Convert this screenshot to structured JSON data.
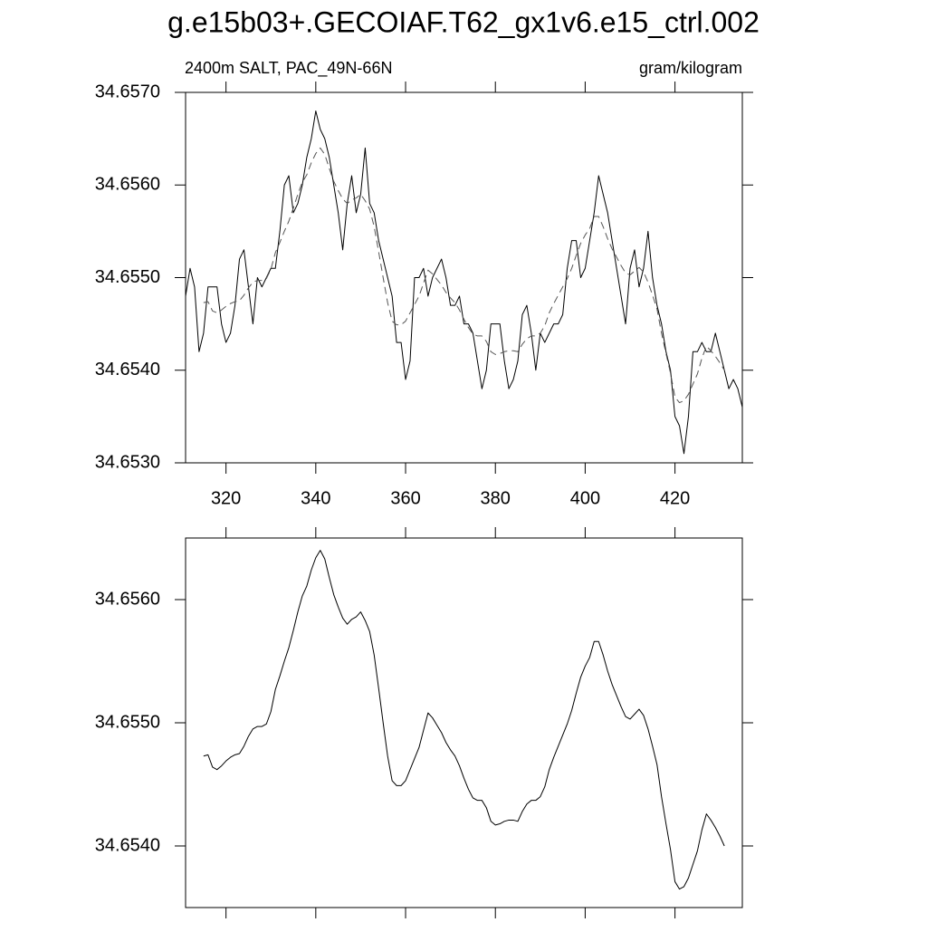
{
  "chart_data": [
    {
      "type": "line",
      "title": "g.e15b03+.GECOIAF.T62_gx1v6.e15_ctrl.002",
      "left_string": "2400m SALT, PAC_49N-66N",
      "right_string": "gram/kilogram",
      "xlim": [
        311,
        435
      ],
      "xticks": [
        320,
        340,
        360,
        380,
        400,
        420
      ],
      "x_tick_labels": true,
      "ylim": [
        34.653,
        34.657
      ],
      "yticks": [
        {
          "value": 34.653,
          "label": "34.6530"
        },
        {
          "value": 34.654,
          "label": "34.6540"
        },
        {
          "value": 34.655,
          "label": "34.6550"
        },
        {
          "value": 34.656,
          "label": "34.6560"
        },
        {
          "value": 34.657,
          "label": "34.6570"
        }
      ],
      "series": [
        {
          "color": "#000000",
          "dash": false,
          "x": [
            311,
            312,
            313,
            314,
            315,
            316,
            317,
            318,
            319,
            320,
            321,
            322,
            323,
            324,
            325,
            326,
            327,
            328,
            329,
            330,
            331,
            332,
            333,
            334,
            335,
            336,
            337,
            338,
            339,
            340,
            341,
            342,
            343,
            344,
            345,
            346,
            347,
            348,
            349,
            350,
            351,
            352,
            353,
            354,
            355,
            356,
            357,
            358,
            359,
            360,
            361,
            362,
            363,
            364,
            365,
            366,
            367,
            368,
            369,
            370,
            371,
            372,
            373,
            374,
            375,
            376,
            377,
            378,
            379,
            380,
            381,
            382,
            383,
            384,
            385,
            386,
            387,
            388,
            389,
            390,
            391,
            392,
            393,
            394,
            395,
            396,
            397,
            398,
            399,
            400,
            401,
            402,
            403,
            404,
            405,
            406,
            407,
            408,
            409,
            410,
            411,
            412,
            413,
            414,
            415,
            416,
            417,
            418,
            419,
            420,
            421,
            422,
            423,
            424,
            425,
            426,
            427,
            428,
            429,
            430,
            431,
            432,
            433,
            434,
            435
          ],
          "values": [
            34.6548,
            34.6551,
            34.6549,
            34.6542,
            34.6544,
            34.6549,
            34.6549,
            34.6549,
            34.6545,
            34.6543,
            34.6544,
            34.6547,
            34.6552,
            34.6553,
            34.6549,
            34.6545,
            34.655,
            34.6549,
            34.655,
            34.6551,
            34.6551,
            34.6555,
            34.656,
            34.6561,
            34.6557,
            34.6558,
            34.656,
            34.6563,
            34.6565,
            34.6568,
            34.6566,
            34.6565,
            34.6563,
            34.656,
            34.6557,
            34.6553,
            34.6558,
            34.6561,
            34.6557,
            34.6559,
            34.6564,
            34.6558,
            34.6557,
            34.6554,
            34.6552,
            34.655,
            34.6548,
            34.6543,
            34.6543,
            34.6539,
            34.6541,
            34.655,
            34.655,
            34.6551,
            34.6548,
            34.655,
            34.6551,
            34.6552,
            34.655,
            34.6547,
            34.6547,
            34.6548,
            34.6545,
            34.6545,
            34.6544,
            34.6541,
            34.6538,
            34.654,
            34.6545,
            34.6545,
            34.6545,
            34.6541,
            34.6538,
            34.6539,
            34.6541,
            34.6546,
            34.6547,
            34.6544,
            34.654,
            34.6544,
            34.6543,
            34.6544,
            34.6545,
            34.6545,
            34.6546,
            34.6551,
            34.6554,
            34.6554,
            34.655,
            34.6551,
            34.6554,
            34.6557,
            34.6561,
            34.6559,
            34.6557,
            34.6554,
            34.6551,
            34.6548,
            34.6545,
            34.6551,
            34.6553,
            34.6549,
            34.6551,
            34.6555,
            34.655,
            34.6547,
            34.6545,
            34.6542,
            34.654,
            34.6535,
            34.6534,
            34.6531,
            34.6535,
            34.6542,
            34.6542,
            34.6543,
            34.6542,
            34.6542,
            34.6544,
            34.6542,
            34.654,
            34.6538,
            34.6539,
            34.6538,
            34.6536
          ]
        },
        {
          "color": "#555555",
          "dash": true,
          "x": [
            315,
            316,
            317,
            318,
            319,
            320,
            321,
            322,
            323,
            324,
            325,
            326,
            327,
            328,
            329,
            330,
            331,
            332,
            333,
            334,
            335,
            336,
            337,
            338,
            339,
            340,
            341,
            342,
            343,
            344,
            345,
            346,
            347,
            348,
            349,
            350,
            351,
            352,
            353,
            354,
            355,
            356,
            357,
            358,
            359,
            360,
            361,
            362,
            363,
            364,
            365,
            366,
            367,
            368,
            369,
            370,
            371,
            372,
            373,
            374,
            375,
            376,
            377,
            378,
            379,
            380,
            381,
            382,
            383,
            384,
            385,
            386,
            387,
            388,
            389,
            390,
            391,
            392,
            393,
            394,
            395,
            396,
            397,
            398,
            399,
            400,
            401,
            402,
            403,
            404,
            405,
            406,
            407,
            408,
            409,
            410,
            411,
            412,
            413,
            414,
            415,
            416,
            417,
            418,
            419,
            420,
            421,
            422,
            423,
            424,
            425,
            426,
            427,
            428,
            429,
            430,
            431
          ],
          "values": [
            34.65473,
            34.65474,
            34.65464,
            34.65462,
            34.65465,
            34.65469,
            34.65472,
            34.65474,
            34.65475,
            34.65481,
            34.65489,
            34.65495,
            34.65497,
            34.65497,
            34.65499,
            34.65509,
            34.65527,
            34.65538,
            34.6555,
            34.65561,
            34.65575,
            34.6559,
            34.65603,
            34.65611,
            34.65624,
            34.65634,
            34.6564,
            34.65633,
            34.65618,
            34.65604,
            34.65594,
            34.65585,
            34.6558,
            34.65584,
            34.65586,
            34.6559,
            34.65583,
            34.65574,
            34.65555,
            34.65528,
            34.655,
            34.65473,
            34.65453,
            34.65449,
            34.65449,
            34.65453,
            34.65462,
            34.65471,
            34.6548,
            34.65494,
            34.65508,
            34.65504,
            34.65498,
            34.65492,
            34.65484,
            34.65478,
            34.65473,
            34.65465,
            34.65455,
            34.65446,
            34.65439,
            34.65437,
            34.65437,
            34.65431,
            34.6542,
            34.65417,
            34.65418,
            34.6542,
            34.65421,
            34.65421,
            34.6542,
            34.65428,
            34.65434,
            34.65437,
            34.65437,
            34.6544,
            34.65448,
            34.65462,
            34.65472,
            34.65481,
            34.6549,
            34.65499,
            34.6551,
            34.65524,
            34.65537,
            34.65546,
            34.65553,
            34.65566,
            34.65566,
            34.65555,
            34.65542,
            34.65531,
            34.65522,
            34.65513,
            34.65505,
            34.65503,
            34.65507,
            34.65511,
            34.65506,
            34.65495,
            34.65481,
            34.65466,
            34.6544,
            34.65418,
            34.65397,
            34.65371,
            34.65365,
            34.65367,
            34.65374,
            34.65385,
            34.65396,
            34.65413,
            34.65426,
            34.65421,
            34.65415,
            34.65408,
            34.654
          ]
        }
      ]
    },
    {
      "type": "line",
      "xlim": [
        311,
        435
      ],
      "xticks": [
        320,
        340,
        360,
        380,
        400,
        420
      ],
      "x_tick_labels": false,
      "ylim": [
        34.6535,
        34.6565
      ],
      "yticks": [
        {
          "value": 34.654,
          "label": "34.6540"
        },
        {
          "value": 34.655,
          "label": "34.6550"
        },
        {
          "value": 34.656,
          "label": "34.6560"
        }
      ],
      "series": [
        {
          "color": "#000000",
          "dash": false,
          "x": [
            315,
            316,
            317,
            318,
            319,
            320,
            321,
            322,
            323,
            324,
            325,
            326,
            327,
            328,
            329,
            330,
            331,
            332,
            333,
            334,
            335,
            336,
            337,
            338,
            339,
            340,
            341,
            342,
            343,
            344,
            345,
            346,
            347,
            348,
            349,
            350,
            351,
            352,
            353,
            354,
            355,
            356,
            357,
            358,
            359,
            360,
            361,
            362,
            363,
            364,
            365,
            366,
            367,
            368,
            369,
            370,
            371,
            372,
            373,
            374,
            375,
            376,
            377,
            378,
            379,
            380,
            381,
            382,
            383,
            384,
            385,
            386,
            387,
            388,
            389,
            390,
            391,
            392,
            393,
            394,
            395,
            396,
            397,
            398,
            399,
            400,
            401,
            402,
            403,
            404,
            405,
            406,
            407,
            408,
            409,
            410,
            411,
            412,
            413,
            414,
            415,
            416,
            417,
            418,
            419,
            420,
            421,
            422,
            423,
            424,
            425,
            426,
            427,
            428,
            429,
            430,
            431
          ],
          "values": [
            34.65473,
            34.65474,
            34.65464,
            34.65462,
            34.65465,
            34.65469,
            34.65472,
            34.65474,
            34.65475,
            34.65481,
            34.65489,
            34.65495,
            34.65497,
            34.65497,
            34.65499,
            34.65509,
            34.65527,
            34.65538,
            34.6555,
            34.65561,
            34.65575,
            34.6559,
            34.65603,
            34.65611,
            34.65624,
            34.65634,
            34.6564,
            34.65633,
            34.65618,
            34.65604,
            34.65594,
            34.65585,
            34.6558,
            34.65584,
            34.65586,
            34.6559,
            34.65583,
            34.65574,
            34.65555,
            34.65528,
            34.655,
            34.65473,
            34.65453,
            34.65449,
            34.65449,
            34.65453,
            34.65462,
            34.65471,
            34.6548,
            34.65494,
            34.65508,
            34.65504,
            34.65498,
            34.65492,
            34.65484,
            34.65478,
            34.65473,
            34.65465,
            34.65455,
            34.65446,
            34.65439,
            34.65437,
            34.65437,
            34.65431,
            34.6542,
            34.65417,
            34.65418,
            34.6542,
            34.65421,
            34.65421,
            34.6542,
            34.65428,
            34.65434,
            34.65437,
            34.65437,
            34.6544,
            34.65448,
            34.65462,
            34.65472,
            34.65481,
            34.6549,
            34.65499,
            34.6551,
            34.65524,
            34.65537,
            34.65546,
            34.65553,
            34.65566,
            34.65566,
            34.65555,
            34.65542,
            34.65531,
            34.65522,
            34.65513,
            34.65505,
            34.65503,
            34.65507,
            34.65511,
            34.65506,
            34.65495,
            34.65481,
            34.65466,
            34.6544,
            34.65418,
            34.65397,
            34.65371,
            34.65365,
            34.65367,
            34.65374,
            34.65385,
            34.65396,
            34.65413,
            34.65426,
            34.65421,
            34.65415,
            34.65408,
            34.654
          ]
        }
      ]
    }
  ]
}
